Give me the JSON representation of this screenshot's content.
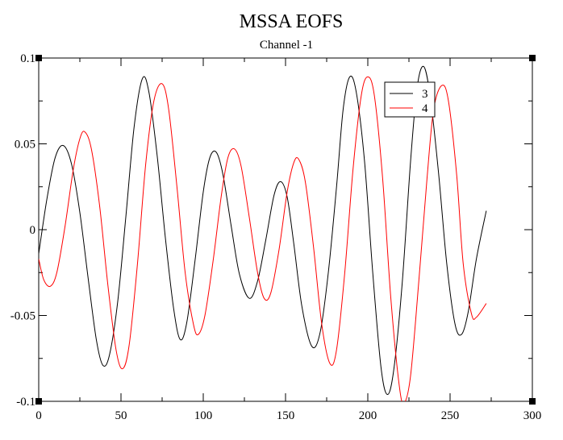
{
  "chart_data": {
    "type": "line",
    "title": "MSSA EOFS",
    "subtitle": "Channel -1",
    "xlabel": "",
    "ylabel": "",
    "xlim": [
      0,
      300
    ],
    "ylim": [
      -0.1,
      0.1
    ],
    "xticks": [
      0,
      50,
      100,
      150,
      200,
      250,
      300
    ],
    "xtick_labels": [
      "0",
      "50",
      "100",
      "150",
      "200",
      "250",
      "300"
    ],
    "yticks": [
      -0.1,
      -0.05,
      0,
      0.05,
      0.1
    ],
    "ytick_labels": [
      "-0.1",
      "-0.05",
      "0",
      "0.05",
      "0.1"
    ],
    "grid": false,
    "legend_position": "top-right",
    "series": [
      {
        "name": "3",
        "color": "#000000",
        "points": [
          [
            0,
            -0.014
          ],
          [
            5,
            0.018
          ],
          [
            10,
            0.042
          ],
          [
            15,
            0.049
          ],
          [
            20,
            0.038
          ],
          [
            25,
            0.01
          ],
          [
            30,
            -0.028
          ],
          [
            35,
            -0.064
          ],
          [
            39,
            -0.079
          ],
          [
            43,
            -0.073
          ],
          [
            48,
            -0.042
          ],
          [
            53,
            0.008
          ],
          [
            58,
            0.06
          ],
          [
            63,
            0.088
          ],
          [
            67,
            0.08
          ],
          [
            72,
            0.043
          ],
          [
            77,
            -0.005
          ],
          [
            82,
            -0.046
          ],
          [
            86,
            -0.064
          ],
          [
            90,
            -0.054
          ],
          [
            95,
            -0.018
          ],
          [
            100,
            0.022
          ],
          [
            104,
            0.042
          ],
          [
            108,
            0.045
          ],
          [
            112,
            0.032
          ],
          [
            117,
            0.002
          ],
          [
            122,
            -0.026
          ],
          [
            128,
            -0.04
          ],
          [
            133,
            -0.03
          ],
          [
            138,
            -0.006
          ],
          [
            143,
            0.02
          ],
          [
            147,
            0.028
          ],
          [
            151,
            0.019
          ],
          [
            155,
            -0.008
          ],
          [
            160,
            -0.045
          ],
          [
            166,
            -0.068
          ],
          [
            171,
            -0.06
          ],
          [
            176,
            -0.025
          ],
          [
            181,
            0.025
          ],
          [
            185,
            0.07
          ],
          [
            189,
            0.089
          ],
          [
            193,
            0.08
          ],
          [
            198,
            0.04
          ],
          [
            203,
            -0.025
          ],
          [
            208,
            -0.08
          ],
          [
            212,
            -0.096
          ],
          [
            216,
            -0.08
          ],
          [
            221,
            -0.03
          ],
          [
            226,
            0.04
          ],
          [
            230,
            0.083
          ],
          [
            234,
            0.095
          ],
          [
            238,
            0.077
          ],
          [
            243,
            0.033
          ],
          [
            248,
            -0.02
          ],
          [
            253,
            -0.055
          ],
          [
            257,
            -0.061
          ],
          [
            261,
            -0.048
          ],
          [
            266,
            -0.017
          ],
          [
            272,
            0.011
          ]
        ]
      },
      {
        "name": "4",
        "color": "#ff0000",
        "points": [
          [
            0,
            -0.017
          ],
          [
            3,
            -0.029
          ],
          [
            7,
            -0.033
          ],
          [
            11,
            -0.025
          ],
          [
            16,
            0.002
          ],
          [
            21,
            0.035
          ],
          [
            25,
            0.053
          ],
          [
            28,
            0.057
          ],
          [
            32,
            0.047
          ],
          [
            37,
            0.014
          ],
          [
            42,
            -0.032
          ],
          [
            47,
            -0.07
          ],
          [
            51,
            -0.081
          ],
          [
            55,
            -0.067
          ],
          [
            60,
            -0.02
          ],
          [
            65,
            0.038
          ],
          [
            70,
            0.075
          ],
          [
            75,
            0.085
          ],
          [
            79,
            0.07
          ],
          [
            84,
            0.025
          ],
          [
            89,
            -0.025
          ],
          [
            94,
            -0.055
          ],
          [
            97,
            -0.061
          ],
          [
            101,
            -0.05
          ],
          [
            106,
            -0.018
          ],
          [
            111,
            0.02
          ],
          [
            115,
            0.042
          ],
          [
            119,
            0.047
          ],
          [
            123,
            0.037
          ],
          [
            128,
            0.007
          ],
          [
            133,
            -0.025
          ],
          [
            137,
            -0.04
          ],
          [
            141,
            -0.037
          ],
          [
            146,
            -0.012
          ],
          [
            151,
            0.022
          ],
          [
            155,
            0.039
          ],
          [
            158,
            0.041
          ],
          [
            162,
            0.028
          ],
          [
            167,
            -0.01
          ],
          [
            172,
            -0.055
          ],
          [
            177,
            -0.078
          ],
          [
            181,
            -0.07
          ],
          [
            186,
            -0.025
          ],
          [
            191,
            0.035
          ],
          [
            196,
            0.078
          ],
          [
            200,
            0.089
          ],
          [
            204,
            0.078
          ],
          [
            209,
            0.03
          ],
          [
            214,
            -0.04
          ],
          [
            219,
            -0.09
          ],
          [
            222,
            -0.101
          ],
          [
            226,
            -0.085
          ],
          [
            231,
            -0.03
          ],
          [
            236,
            0.03
          ],
          [
            240,
            0.07
          ],
          [
            245,
            0.084
          ],
          [
            249,
            0.075
          ],
          [
            254,
            0.032
          ],
          [
            258,
            -0.02
          ],
          [
            263,
            -0.049
          ],
          [
            266,
            -0.051
          ],
          [
            272,
            -0.043
          ]
        ]
      }
    ]
  }
}
